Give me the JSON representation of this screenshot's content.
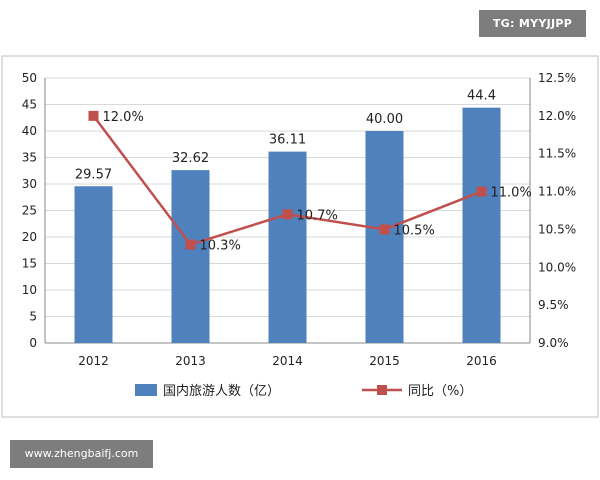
{
  "watermark_top": "TG: MYYJJPP",
  "watermark_bottom": "www.zhengbaifj.com",
  "chart_data": {
    "type": "bar",
    "categories": [
      "2012",
      "2013",
      "2014",
      "2015",
      "2016"
    ],
    "series": [
      {
        "name": "国内旅游人数（亿）",
        "type": "bar",
        "axis": "left",
        "values": [
          29.57,
          32.62,
          36.11,
          40.0,
          44.4
        ],
        "labels": [
          "29.57",
          "32.62",
          "36.11",
          "40.00",
          "44.4"
        ],
        "color": "#4f81bd"
      },
      {
        "name": "同比（%）",
        "type": "line",
        "axis": "right",
        "values": [
          12.0,
          10.3,
          10.7,
          10.5,
          11.0
        ],
        "labels": [
          "12.0%",
          "10.3%",
          "10.7%",
          "10.5%",
          "11.0%"
        ],
        "color": "#c0504d"
      }
    ],
    "y_left": {
      "min": 0,
      "max": 50,
      "ticks": [
        "0",
        "5",
        "10",
        "15",
        "20",
        "25",
        "30",
        "35",
        "40",
        "45",
        "50"
      ]
    },
    "y_right": {
      "min": 9.0,
      "max": 12.5,
      "ticks": [
        "9.0%",
        "9.5%",
        "10.0%",
        "10.5%",
        "11.0%",
        "11.5%",
        "12.0%",
        "12.5%"
      ]
    },
    "grid": true,
    "legend_position": "bottom"
  }
}
